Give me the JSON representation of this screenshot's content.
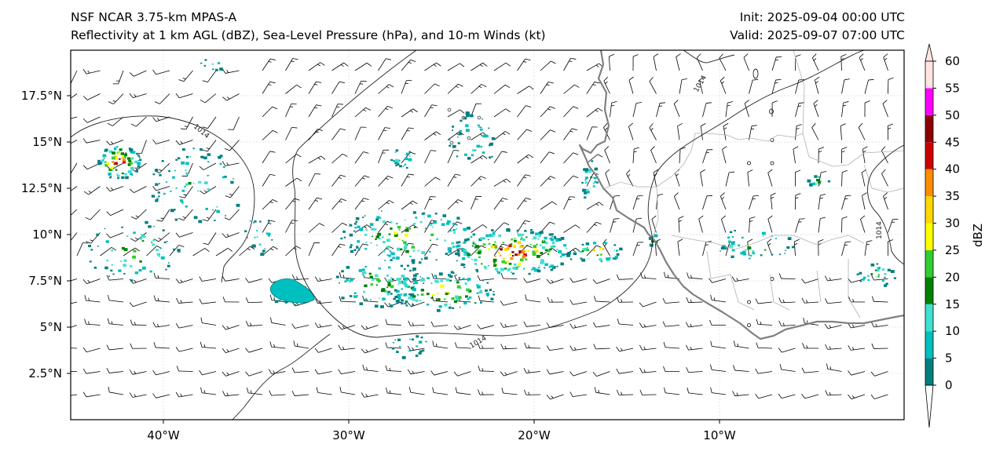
{
  "header": {
    "model_title": "NSF NCAR 3.75-km MPAS-A",
    "field_title": "Reflectivity at 1 km AGL (dBZ), Sea-Level Pressure (hPa), and 10-m Winds (kt)",
    "init_time": "Init: 2025-09-04 00:00 UTC",
    "valid_time": "Valid: 2025-09-07 07:00 UTC"
  },
  "map": {
    "lon_range": [
      -45,
      0
    ],
    "lat_range": [
      0,
      20
    ],
    "lon_ticks": [
      {
        "value": -40,
        "label": "40°W"
      },
      {
        "value": -30,
        "label": "30°W"
      },
      {
        "value": -20,
        "label": "20°W"
      },
      {
        "value": -10,
        "label": "10°W"
      }
    ],
    "lat_ticks": [
      {
        "value": 2.5,
        "label": "2.5°N"
      },
      {
        "value": 5,
        "label": "5°N"
      },
      {
        "value": 7.5,
        "label": "7.5°N"
      },
      {
        "value": 10,
        "label": "10°N"
      },
      {
        "value": 12.5,
        "label": "12.5°N"
      },
      {
        "value": 15,
        "label": "15°N"
      },
      {
        "value": 17.5,
        "label": "17.5°N"
      }
    ],
    "isobar_label": "1014",
    "coastline_color": "#808080",
    "border_color": "#b0b0b0",
    "isobar_color": "#222222"
  },
  "colorbar": {
    "label": "dBZ",
    "ticks": [
      "0",
      "5",
      "10",
      "15",
      "20",
      "25",
      "30",
      "35",
      "40",
      "45",
      "50",
      "55",
      "60"
    ],
    "colors": [
      "#007f7f",
      "#00bfbf",
      "#40e0d0",
      "#008000",
      "#32cd32",
      "#ffff00",
      "#ffd700",
      "#ff8c00",
      "#cc0000",
      "#8b0000",
      "#ff00ff",
      "#ffe4e1"
    ],
    "extend": "both"
  }
}
